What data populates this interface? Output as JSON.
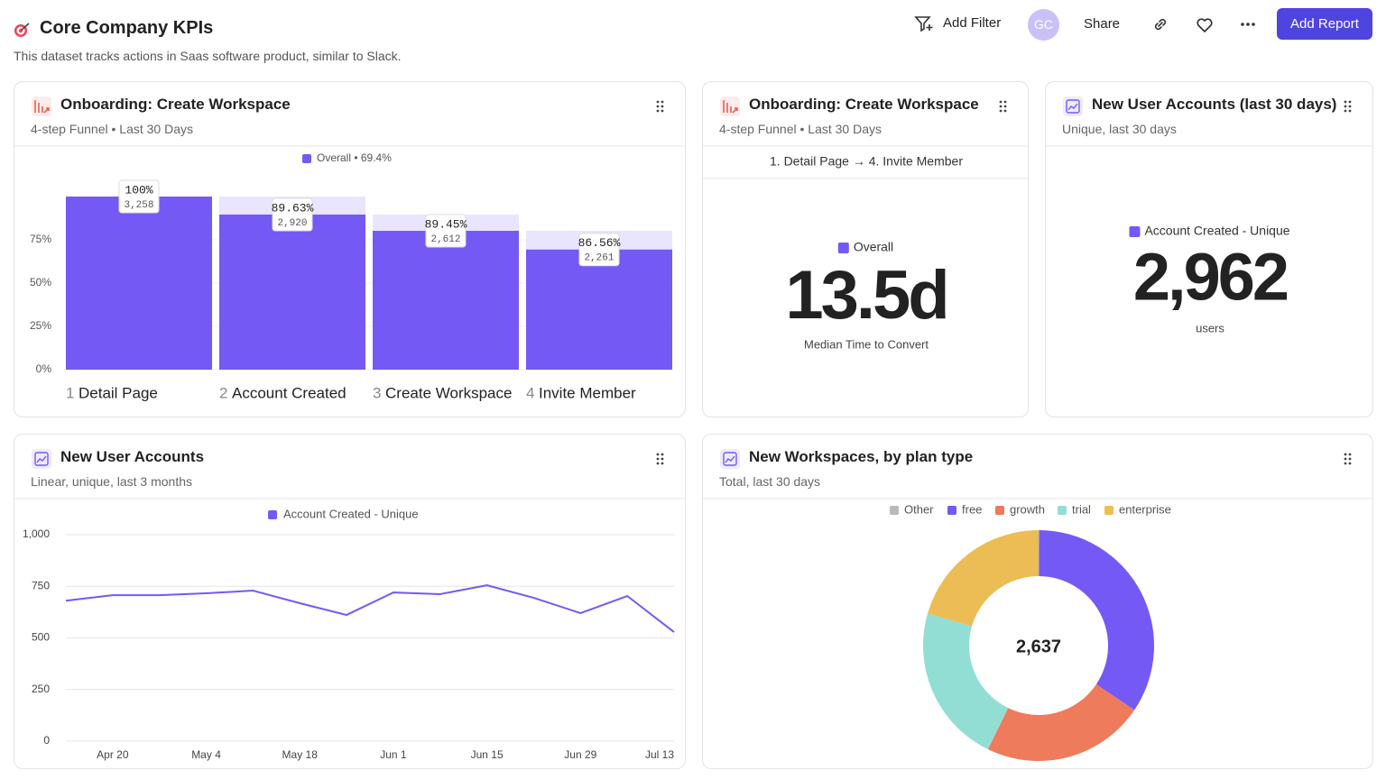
{
  "header": {
    "title": "Core Company KPIs",
    "subtitle": "This dataset tracks actions in Saas software product, similar to Slack.",
    "add_filter": "Add Filter",
    "avatar": "GC",
    "share": "Share",
    "add_report": "Add Report"
  },
  "cards": [
    {
      "title": "Onboarding: Create Workspace",
      "subtitle": "4-step Funnel • Last 30 Days",
      "chart": {
        "type": "funnel",
        "legend": "Overall • 69.4%",
        "color": "#7459f5",
        "ghost_color": "#e9e5ff",
        "step_numbers": [
          "1",
          "2",
          "3",
          "4"
        ],
        "categories": [
          "Detail Page",
          "Account Created",
          "Create Workspace",
          "Invite Member"
        ],
        "values": [
          100,
          89.6,
          80.2,
          69.4
        ],
        "step_conversion": {
          "values": [
            100,
            89.63,
            89.45,
            86.56
          ],
          "value_labels": [
            "100%",
            "89.63%",
            "89.45%",
            "86.56%"
          ]
        },
        "counts": {
          "values": [
            3258,
            2920,
            2612,
            2261
          ],
          "value_labels": [
            "3,258",
            "2,920",
            "2,612",
            "2,261"
          ]
        },
        "ylim": [
          0,
          100
        ],
        "yticks": [
          {
            "value": 0,
            "label": "0%"
          },
          {
            "value": 25,
            "label": "25%"
          },
          {
            "value": 50,
            "label": "50%"
          },
          {
            "value": 75,
            "label": "75%"
          }
        ],
        "grid": true
      }
    },
    {
      "title": "Onboarding: Create Workspace",
      "subtitle": "4-step Funnel • Last 30 Days",
      "chart": {
        "type": "metric",
        "steps": "1. Detail Page → 4. Invite Member",
        "legend": "Overall",
        "color": "#7459f5",
        "value": "13.5d",
        "caption": "Median Time to Convert"
      }
    },
    {
      "title": "New User Accounts (last 30 days)",
      "subtitle": "Unique, last 30 days",
      "chart": {
        "type": "metric",
        "legend": "Account Created - Unique",
        "color": "#7459f5",
        "value": "2,962",
        "caption": "users"
      }
    },
    {
      "title": "New User Accounts",
      "subtitle": "Linear, unique, last 3 months",
      "chart": {
        "type": "line",
        "legend": "Account Created - Unique",
        "color": "#7459f5",
        "categories": [
          null,
          "Apr 20",
          null,
          "May 4",
          null,
          "May 18",
          null,
          "Jun 1",
          null,
          "Jun 15",
          null,
          "Jun 29",
          null,
          "Jul 13"
        ],
        "values": [
          680,
          707,
          707,
          716,
          729,
          668,
          611,
          720,
          712,
          755,
          694,
          620,
          703,
          528
        ],
        "ylim": [
          0,
          1000
        ],
        "yticks": [
          0,
          250,
          500,
          750,
          {
            "value": 1000,
            "label": "1,000"
          }
        ],
        "grid": true
      }
    },
    {
      "title": "New Workspaces, by plan type",
      "subtitle": "Total, last 30 days",
      "chart": {
        "type": "donut",
        "categories": [
          "Other",
          "free",
          "growth",
          "trial",
          "enterprise"
        ],
        "values": [
          2,
          906,
          601,
          587,
          541
        ],
        "colors": [
          "#b9b9b9",
          "#7459f5",
          "#ee7b5b",
          "#92ded5",
          "#ecbd55"
        ],
        "center_label": "2,637"
      }
    }
  ]
}
